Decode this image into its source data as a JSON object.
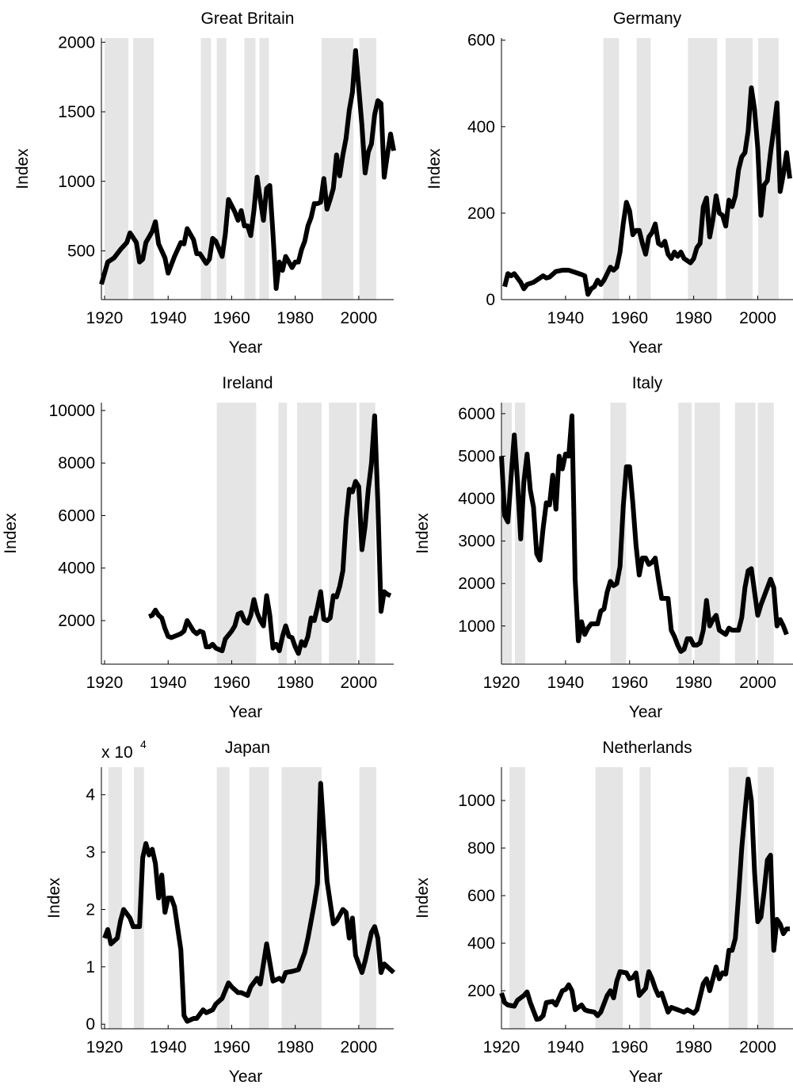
{
  "chart_data": [
    {
      "type": "line",
      "title": "Great Britain",
      "xlabel": "Year",
      "ylabel": "Index",
      "color": "#000000",
      "shade_color": "#e5e5e5",
      "x": [
        1919,
        1921,
        1923,
        1925,
        1927,
        1928,
        1930,
        1931,
        1932,
        1933,
        1935,
        1936,
        1937,
        1939,
        1940,
        1942,
        1944,
        1945,
        1946,
        1948,
        1949,
        1950,
        1952,
        1953,
        1954,
        1955,
        1957,
        1958,
        1959,
        1961,
        1962,
        1963,
        1964,
        1965,
        1966,
        1967,
        1968,
        1969,
        1970,
        1971,
        1972,
        1973,
        1974,
        1975,
        1976,
        1977,
        1978,
        1979,
        1980,
        1981,
        1982,
        1983,
        1984,
        1985,
        1986,
        1987,
        1988,
        1989,
        1990,
        1991,
        1992,
        1993,
        1994,
        1995,
        1996,
        1997,
        1998,
        1999,
        2000,
        2001,
        2002,
        2003,
        2004,
        2005,
        2006,
        2007,
        2008,
        2009,
        2010,
        2011
      ],
      "values": [
        260,
        420,
        450,
        510,
        560,
        630,
        560,
        420,
        440,
        560,
        640,
        710,
        550,
        450,
        340,
        460,
        560,
        550,
        660,
        580,
        480,
        480,
        410,
        440,
        590,
        570,
        460,
        620,
        870,
        780,
        720,
        790,
        680,
        680,
        610,
        790,
        1030,
        870,
        720,
        950,
        970,
        620,
        230,
        420,
        360,
        460,
        420,
        380,
        420,
        420,
        510,
        570,
        680,
        740,
        840,
        840,
        850,
        1020,
        800,
        870,
        950,
        1190,
        1040,
        1190,
        1310,
        1510,
        1640,
        1940,
        1670,
        1400,
        1060,
        1210,
        1270,
        1480,
        1580,
        1560,
        1030,
        1190,
        1340,
        1220
      ],
      "shaded": [
        [
          1920,
          1927.5
        ],
        [
          1929,
          1935.5
        ],
        [
          1950.3,
          1953.5
        ],
        [
          1955.3,
          1958.3
        ],
        [
          1964,
          1967.5
        ],
        [
          1968.7,
          1971.7
        ],
        [
          1988.3,
          1998.3
        ],
        [
          2000.2,
          2005.5
        ]
      ],
      "xlim": [
        1919,
        2011
      ],
      "ylim": [
        150,
        2030
      ],
      "xticks": [
        1920,
        1940,
        1960,
        1980,
        2000
      ],
      "yticks": [
        500,
        1000,
        1500,
        2000
      ]
    },
    {
      "type": "line",
      "title": "Germany",
      "xlabel": "Year",
      "ylabel": "Index",
      "color": "#000000",
      "shade_color": "#e5e5e5",
      "x": [
        1921,
        1922,
        1923,
        1924,
        1926,
        1927,
        1928,
        1930,
        1932,
        1933,
        1934,
        1935,
        1937,
        1939,
        1941,
        1943,
        1945,
        1946,
        1947,
        1948,
        1949,
        1950,
        1951,
        1952,
        1953,
        1954,
        1955,
        1956,
        1957,
        1958,
        1959,
        1960,
        1961,
        1962,
        1963,
        1964,
        1965,
        1966,
        1967,
        1968,
        1969,
        1970,
        1971,
        1972,
        1973,
        1974,
        1975,
        1976,
        1977,
        1978,
        1979,
        1980,
        1981,
        1982,
        1983,
        1984,
        1985,
        1986,
        1987,
        1988,
        1989,
        1990,
        1991,
        1992,
        1993,
        1994,
        1995,
        1996,
        1997,
        1998,
        1999,
        2000,
        2001,
        2002,
        2003,
        2004,
        2005,
        2006,
        2007,
        2008,
        2009,
        2010
      ],
      "values": [
        30,
        60,
        55,
        60,
        40,
        25,
        35,
        40,
        50,
        55,
        50,
        52,
        65,
        68,
        68,
        63,
        58,
        55,
        12,
        25,
        30,
        45,
        35,
        45,
        60,
        75,
        68,
        75,
        110,
        175,
        225,
        205,
        150,
        160,
        160,
        130,
        105,
        145,
        155,
        175,
        130,
        125,
        135,
        105,
        95,
        110,
        100,
        110,
        95,
        90,
        85,
        95,
        120,
        130,
        215,
        235,
        145,
        185,
        240,
        200,
        195,
        170,
        230,
        215,
        240,
        300,
        330,
        340,
        390,
        490,
        440,
        350,
        195,
        265,
        275,
        340,
        395,
        455,
        250,
        290,
        340,
        280
      ],
      "shaded": [
        [
          1951.8,
          1956.7
        ],
        [
          1962.2,
          1966.6
        ],
        [
          1978.2,
          1987.3
        ],
        [
          1990,
          1998.4
        ],
        [
          2000.1,
          2006.5
        ]
      ],
      "xlim": [
        1920,
        2011
      ],
      "ylim": [
        0,
        605
      ],
      "xticks": [
        1940,
        1960,
        1980,
        2000
      ],
      "yticks": [
        0,
        200,
        400,
        600
      ]
    },
    {
      "type": "line",
      "title": "Ireland",
      "xlabel": "Year",
      "ylabel": "Index",
      "color": "#000000",
      "shade_color": "#e5e5e5",
      "x": [
        1934,
        1935,
        1936,
        1937,
        1938,
        1939,
        1940,
        1941,
        1942,
        1943,
        1944,
        1945,
        1946,
        1947,
        1948,
        1949,
        1950,
        1951,
        1952,
        1953,
        1954,
        1955,
        1956,
        1957,
        1958,
        1959,
        1960,
        1961,
        1962,
        1963,
        1964,
        1965,
        1966,
        1967,
        1968,
        1969,
        1970,
        1971,
        1972,
        1973,
        1974,
        1975,
        1976,
        1977,
        1978,
        1979,
        1980,
        1981,
        1982,
        1983,
        1984,
        1985,
        1986,
        1987,
        1988,
        1989,
        1990,
        1991,
        1992,
        1993,
        1994,
        1995,
        1996,
        1997,
        1998,
        1999,
        2000,
        2001,
        2002,
        2003,
        2004,
        2005,
        2006,
        2007,
        2008,
        2009,
        2010
      ],
      "values": [
        2150,
        2200,
        2400,
        2200,
        2100,
        1700,
        1400,
        1350,
        1400,
        1450,
        1500,
        1600,
        2000,
        1800,
        1600,
        1500,
        1600,
        1550,
        1000,
        1000,
        1100,
        950,
        900,
        850,
        1300,
        1450,
        1600,
        1800,
        2250,
        2300,
        2000,
        1900,
        2200,
        2800,
        2300,
        2000,
        1800,
        2950,
        2200,
        950,
        1100,
        850,
        1400,
        1800,
        1400,
        1350,
        1000,
        750,
        1200,
        1050,
        1400,
        2100,
        2000,
        2500,
        3100,
        2050,
        2000,
        2100,
        2950,
        2900,
        3300,
        3900,
        5800,
        7000,
        6900,
        7300,
        7100,
        4700,
        5600,
        7000,
        8000,
        9800,
        6500,
        2350,
        3100,
        3000,
        2950
      ],
      "shaded": [
        [
          1955.3,
          1967.7
        ],
        [
          1974.7,
          1977.4
        ],
        [
          1980.6,
          1988.3
        ],
        [
          1990.6,
          1999.3
        ],
        [
          2000.2,
          2005.2
        ]
      ],
      "xlim": [
        1919,
        2011
      ],
      "ylim": [
        340,
        10300
      ],
      "xticks": [
        1920,
        1940,
        1960,
        1980,
        2000
      ],
      "yticks": [
        2000,
        4000,
        6000,
        8000,
        10000
      ]
    },
    {
      "type": "line",
      "title": "Italy",
      "xlabel": "Year",
      "ylabel": "Index",
      "color": "#000000",
      "shade_color": "#e5e5e5",
      "x": [
        1920,
        1921,
        1922,
        1923,
        1924,
        1925,
        1926,
        1927,
        1928,
        1929,
        1930,
        1931,
        1932,
        1933,
        1934,
        1935,
        1936,
        1937,
        1938,
        1939,
        1940,
        1941,
        1942,
        1943,
        1944,
        1945,
        1946,
        1947,
        1948,
        1949,
        1950,
        1951,
        1952,
        1953,
        1954,
        1955,
        1956,
        1957,
        1958,
        1959,
        1960,
        1961,
        1962,
        1963,
        1964,
        1965,
        1966,
        1967,
        1968,
        1969,
        1970,
        1971,
        1972,
        1973,
        1974,
        1975,
        1976,
        1977,
        1978,
        1979,
        1980,
        1981,
        1982,
        1983,
        1984,
        1985,
        1986,
        1987,
        1988,
        1989,
        1990,
        1991,
        1992,
        1993,
        1994,
        1995,
        1996,
        1997,
        1998,
        1999,
        2000,
        2001,
        2002,
        2003,
        2004,
        2005,
        2006,
        2007,
        2008,
        2009
      ],
      "values": [
        5000,
        3600,
        3450,
        4500,
        5500,
        4400,
        3050,
        4400,
        5050,
        4200,
        3800,
        2700,
        2550,
        3300,
        3900,
        3850,
        4550,
        3750,
        5000,
        4700,
        5050,
        5000,
        5950,
        2100,
        650,
        1100,
        800,
        950,
        1050,
        1050,
        1050,
        1350,
        1400,
        1800,
        2050,
        1950,
        2000,
        2400,
        3800,
        4750,
        4750,
        3900,
        2900,
        2200,
        2600,
        2600,
        2450,
        2500,
        2600,
        2100,
        1650,
        1650,
        1650,
        900,
        750,
        550,
        400,
        450,
        700,
        700,
        550,
        550,
        600,
        900,
        1600,
        1000,
        1150,
        1250,
        900,
        850,
        800,
        950,
        900,
        900,
        900,
        1200,
        1900,
        2300,
        2350,
        1800,
        1250,
        1500,
        1700,
        1900,
        2100,
        1900,
        1000,
        1150,
        1000,
        800
      ],
      "shaded": [
        [
          1920.2,
          1923.2
        ],
        [
          1924.2,
          1927.4
        ],
        [
          1954,
          1958.9
        ],
        [
          1975.2,
          1979.4
        ],
        [
          1980.3,
          1988.2
        ],
        [
          1992.9,
          1999.3
        ],
        [
          2000,
          2005
        ]
      ],
      "xlim": [
        1920,
        2011
      ],
      "ylim": [
        100,
        6260
      ],
      "xticks": [
        1920,
        1940,
        1960,
        1980,
        2000
      ],
      "yticks": [
        1000,
        2000,
        3000,
        4000,
        5000,
        6000
      ]
    },
    {
      "type": "line",
      "title": "Japan",
      "xlabel": "Year",
      "ylabel": "Index",
      "exponent_label": "x 10",
      "exponent": "4",
      "color": "#000000",
      "shade_color": "#e5e5e5",
      "x": [
        1920,
        1921,
        1922,
        1924,
        1925,
        1926,
        1928,
        1929,
        1931,
        1932,
        1933,
        1934,
        1935,
        1936,
        1937,
        1938,
        1939,
        1940,
        1941,
        1942,
        1944,
        1945,
        1946,
        1948,
        1949,
        1951,
        1952,
        1954,
        1955,
        1957,
        1959,
        1960,
        1962,
        1963,
        1965,
        1966,
        1968,
        1969,
        1971,
        1973,
        1975,
        1976,
        1977,
        1979,
        1981,
        1983,
        1984,
        1986,
        1987,
        1988,
        1990,
        1992,
        1993,
        1995,
        1996,
        1997,
        1998,
        1999,
        2001,
        2002,
        2004,
        2005,
        2006,
        2007,
        2008,
        2010,
        2011
      ],
      "values": [
        1.5,
        1.65,
        1.4,
        1.5,
        1.8,
        2.0,
        1.85,
        1.7,
        1.7,
        2.9,
        3.15,
        2.95,
        3.05,
        2.8,
        2.2,
        2.6,
        1.95,
        2.2,
        2.2,
        2.05,
        1.3,
        0.15,
        0.05,
        0.1,
        0.1,
        0.25,
        0.2,
        0.25,
        0.35,
        0.45,
        0.72,
        0.65,
        0.55,
        0.55,
        0.5,
        0.65,
        0.8,
        0.7,
        1.4,
        0.75,
        0.8,
        0.75,
        0.9,
        0.92,
        0.95,
        1.25,
        1.5,
        2.1,
        2.45,
        4.2,
        2.5,
        1.75,
        1.8,
        2.0,
        1.95,
        1.5,
        1.85,
        1.2,
        0.9,
        1.1,
        1.6,
        1.7,
        1.5,
        0.9,
        1.05,
        0.95,
        0.9
      ],
      "shaded": [
        [
          1921.2,
          1925.5
        ],
        [
          1929.2,
          1932.4
        ],
        [
          1955.3,
          1959.3
        ],
        [
          1965.5,
          1971.7
        ],
        [
          1975.7,
          1988.3
        ],
        [
          2000.2,
          2005.5
        ]
      ],
      "xlim": [
        1919,
        2011
      ],
      "ylim": [
        -0.08,
        4.48
      ],
      "xticks": [
        1920,
        1940,
        1960,
        1980,
        2000
      ],
      "yticks": [
        0,
        1,
        2,
        3,
        4
      ]
    },
    {
      "type": "line",
      "title": "Netherlands",
      "xlabel": "Year",
      "ylabel": "Index",
      "color": "#000000",
      "shade_color": "#e5e5e5",
      "x": [
        1920,
        1921,
        1922,
        1924,
        1925,
        1927,
        1928,
        1929,
        1931,
        1932,
        1933,
        1934,
        1936,
        1937,
        1939,
        1940,
        1941,
        1942,
        1943,
        1945,
        1946,
        1947,
        1949,
        1950,
        1951,
        1953,
        1954,
        1955,
        1956,
        1957,
        1959,
        1960,
        1961,
        1962,
        1963,
        1965,
        1966,
        1967,
        1968,
        1969,
        1970,
        1972,
        1973,
        1975,
        1976,
        1977,
        1978,
        1980,
        1981,
        1982,
        1983,
        1984,
        1985,
        1987,
        1988,
        1989,
        1990,
        1991,
        1992,
        1993,
        1994,
        1995,
        1996,
        1997,
        1998,
        1999,
        2000,
        2001,
        2002,
        2003,
        2004,
        2005,
        2006,
        2007,
        2008,
        2009,
        2010
      ],
      "values": [
        190,
        150,
        140,
        135,
        160,
        180,
        195,
        150,
        80,
        82,
        95,
        150,
        155,
        140,
        200,
        205,
        225,
        200,
        120,
        140,
        120,
        115,
        110,
        95,
        110,
        180,
        200,
        170,
        240,
        280,
        275,
        250,
        255,
        275,
        180,
        210,
        280,
        250,
        210,
        180,
        190,
        110,
        130,
        120,
        115,
        110,
        120,
        105,
        120,
        175,
        230,
        250,
        200,
        300,
        250,
        275,
        270,
        370,
        370,
        420,
        600,
        800,
        950,
        1090,
        1000,
        700,
        490,
        510,
        620,
        750,
        770,
        370,
        500,
        480,
        440,
        460,
        460
      ],
      "shaded": [
        [
          1922.5,
          1927.4
        ],
        [
          1949.3,
          1957.9
        ],
        [
          1963.1,
          1966.6
        ],
        [
          1990.9,
          1996.8
        ],
        [
          2000,
          2005
        ]
      ],
      "xlim": [
        1920,
        2011
      ],
      "ylim": [
        40,
        1140
      ],
      "xticks": [
        1920,
        1940,
        1960,
        1980,
        2000
      ],
      "yticks": [
        200,
        400,
        600,
        800,
        1000
      ]
    }
  ]
}
